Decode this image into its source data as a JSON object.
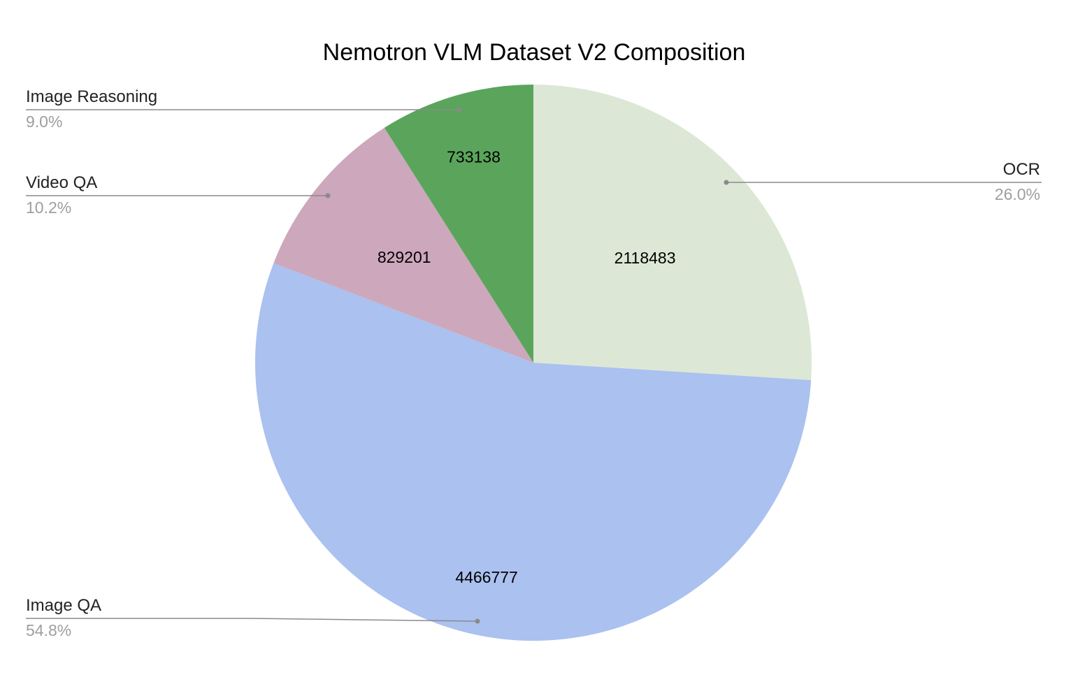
{
  "chart_data": {
    "type": "pie",
    "title": "Nemotron VLM Dataset V2 Composition",
    "slices": [
      {
        "name": "OCR",
        "value": 2118483,
        "percent_label": "26.0%",
        "value_label": "2118483",
        "color": "#dce8d5"
      },
      {
        "name": "Image QA",
        "value": 4466777,
        "percent_label": "54.8%",
        "value_label": "4466777",
        "color": "#abc1ef"
      },
      {
        "name": "Video QA",
        "value": 829201,
        "percent_label": "10.2%",
        "value_label": "829201",
        "color": "#cda7bc"
      },
      {
        "name": "Image Reasoning",
        "value": 733138,
        "percent_label": "9.0%",
        "value_label": "733138",
        "color": "#5aa55b"
      }
    ],
    "start_angle": "12 o'clock",
    "direction": "clockwise",
    "legend": "none"
  }
}
